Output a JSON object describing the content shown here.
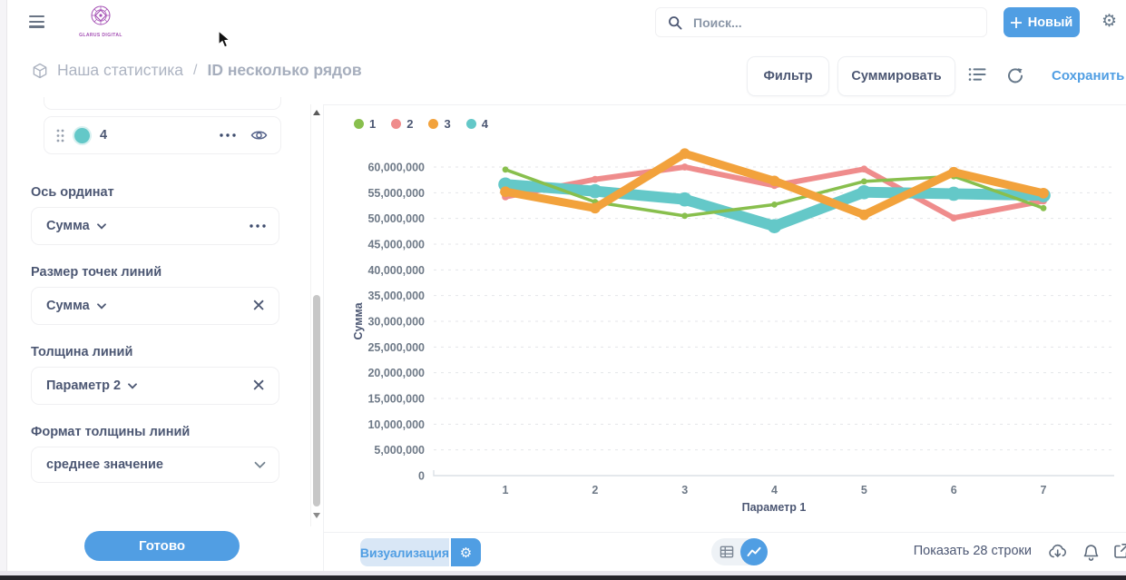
{
  "window": {
    "logo_text": "GLARUS DIGITAL",
    "brand_color": "#A44FB4"
  },
  "header": {
    "search": {
      "placeholder": "Поиск..."
    },
    "new_button": {
      "label": "Новый",
      "color": "#509EE3"
    }
  },
  "breadcrumb": {
    "collection": "Наша статистика",
    "separator": "/",
    "title": "ID несколько рядов"
  },
  "toolbar": {
    "filter_label": "Фильтр",
    "summarize_label": "Суммировать",
    "save_label": "Сохранить",
    "save_color": "#509EE3"
  },
  "sidebar": {
    "series_item": {
      "label": "4",
      "dot_color": "#64C8C8"
    },
    "y_axis_section": {
      "heading": "Ось ординат",
      "value": "Сумма"
    },
    "point_size_section": {
      "heading": "Размер точек линий",
      "value": "Сумма"
    },
    "line_width_section": {
      "heading": "Толщина линий",
      "value": "Параметр 2"
    },
    "width_format_section": {
      "heading": "Формат толщины линий",
      "value": "среднее значение"
    },
    "done_button": "Готово"
  },
  "chart_data": {
    "type": "line",
    "x": [
      1,
      2,
      3,
      4,
      5,
      6,
      7
    ],
    "xlabel": "Параметр 1",
    "ylabel": "Сумма",
    "ylim": [
      0,
      60000000
    ],
    "y_tick_step": 5000000,
    "grid": "dashed-horizontal",
    "legend_position": "top-left",
    "series": [
      {
        "name": "1",
        "color": "#88BF4D",
        "line_width": 3.5,
        "values": [
          59500000,
          53200000,
          50500000,
          52700000,
          57200000,
          58200000,
          52000000
        ]
      },
      {
        "name": "2",
        "color": "#EF8C8C",
        "line_width": 6,
        "values": [
          54200000,
          57600000,
          60000000,
          56400000,
          59600000,
          50100000,
          53400000
        ]
      },
      {
        "name": "3",
        "color": "#F2A23C",
        "line_width": 9,
        "values": [
          55200000,
          52000000,
          62600000,
          57300000,
          50700000,
          59000000,
          54900000
        ]
      },
      {
        "name": "4",
        "color": "#64C8C8",
        "line_width": 12,
        "values": [
          56600000,
          55300000,
          53700000,
          48500000,
          55100000,
          54800000,
          54500000
        ]
      }
    ],
    "draw_order": [
      "2",
      "4",
      "1",
      "3"
    ]
  },
  "footer": {
    "visualization_label": "Визуализация",
    "row_count_label": "Показать 28 строки"
  }
}
